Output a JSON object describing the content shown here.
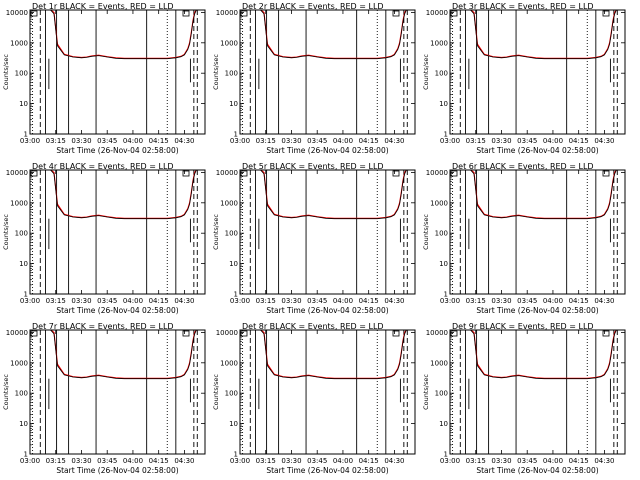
{
  "chart_data": [
    {
      "type": "line",
      "title": "Det 1r BLACK = Events, RED = LLD",
      "ylabel": "Counts/sec",
      "xlabel": "Start Time (26-Nov-04 02:58:00)",
      "series": [
        {
          "name": "Events",
          "color": "#000000"
        },
        {
          "name": "LLD",
          "color": "#ff0000"
        }
      ]
    },
    {
      "type": "line",
      "title": "Det 2r BLACK = Events, RED = LLD",
      "ylabel": "Counts/sec",
      "xlabel": "Start Time (26-Nov-04 02:58:00)",
      "series": [
        {
          "name": "Events",
          "color": "#000000"
        },
        {
          "name": "LLD",
          "color": "#ff0000"
        }
      ]
    },
    {
      "type": "line",
      "title": "Det 3r BLACK = Events, RED = LLD",
      "ylabel": "Counts/sec",
      "xlabel": "Start Time (26-Nov-04 02:58:00)",
      "series": [
        {
          "name": "Events",
          "color": "#000000"
        },
        {
          "name": "LLD",
          "color": "#ff0000"
        }
      ]
    },
    {
      "type": "line",
      "title": "Det 4r BLACK = Events, RED = LLD",
      "ylabel": "Counts/sec",
      "xlabel": "Start Time (26-Nov-04 02:58:00)",
      "series": [
        {
          "name": "Events",
          "color": "#000000"
        },
        {
          "name": "LLD",
          "color": "#ff0000"
        }
      ]
    },
    {
      "type": "line",
      "title": "Det 5r BLACK = Events, RED = LLD",
      "ylabel": "Counts/sec",
      "xlabel": "Start Time (26-Nov-04 02:58:00)",
      "series": [
        {
          "name": "Events",
          "color": "#000000"
        },
        {
          "name": "LLD",
          "color": "#ff0000"
        }
      ]
    },
    {
      "type": "line",
      "title": "Det 6r BLACK = Events, RED = LLD",
      "ylabel": "Counts/sec",
      "xlabel": "Start Time (26-Nov-04 02:58:00)",
      "series": [
        {
          "name": "Events",
          "color": "#000000"
        },
        {
          "name": "LLD",
          "color": "#ff0000"
        }
      ]
    },
    {
      "type": "line",
      "title": "Det 7r BLACK = Events, RED = LLD",
      "ylabel": "Counts/sec",
      "xlabel": "Start Time (26-Nov-04 02:58:00)",
      "series": [
        {
          "name": "Events",
          "color": "#000000"
        },
        {
          "name": "LLD",
          "color": "#ff0000"
        }
      ]
    },
    {
      "type": "line",
      "title": "Det 8r BLACK = Events, RED = LLD",
      "ylabel": "Counts/sec",
      "xlabel": "Start Time (26-Nov-04 02:58:00)",
      "series": [
        {
          "name": "Events",
          "color": "#000000"
        },
        {
          "name": "LLD",
          "color": "#ff0000"
        }
      ]
    },
    {
      "type": "line",
      "title": "Det 9r BLACK = Events, RED = LLD",
      "ylabel": "Counts/sec",
      "xlabel": "Start Time (26-Nov-04 02:58:00)",
      "series": [
        {
          "name": "Events",
          "color": "#000000"
        },
        {
          "name": "LLD",
          "color": "#ff0000"
        }
      ]
    }
  ],
  "shared": {
    "x_ticks": [
      "03:00",
      "03:15",
      "03:30",
      "03:45",
      "04:00",
      "04:15",
      "04:30"
    ],
    "x_range_minutes_after_0300": [
      0,
      102
    ],
    "y_scale": "log",
    "y_range": [
      1,
      12000
    ],
    "y_ticks": [
      {
        "value": 1,
        "label": "1"
      },
      {
        "value": 10,
        "label": "10"
      },
      {
        "value": 100,
        "label": "100"
      },
      {
        "value": 1000,
        "label": "1000"
      },
      {
        "value": 10000,
        "label": "10000"
      }
    ],
    "curve_minutes": [
      0,
      10,
      12,
      14,
      16,
      20,
      25,
      30,
      33,
      36,
      40,
      45,
      50,
      55,
      60,
      65,
      70,
      75,
      80,
      85,
      88,
      90,
      92,
      93,
      94,
      95,
      96,
      97,
      98,
      99,
      100,
      101,
      102
    ],
    "events_rate": [
      12000,
      12000,
      12000,
      9000,
      800,
      400,
      340,
      320,
      330,
      360,
      380,
      340,
      310,
      300,
      300,
      300,
      300,
      300,
      300,
      320,
      350,
      400,
      600,
      900,
      2000,
      5000,
      9000,
      12000,
      12000,
      12000,
      12000,
      12000,
      12000
    ],
    "lld_rate": [
      12000,
      12000,
      12000,
      10000,
      900,
      420,
      350,
      330,
      340,
      370,
      390,
      350,
      320,
      310,
      310,
      310,
      310,
      310,
      310,
      330,
      360,
      420,
      650,
      1000,
      2200,
      5500,
      10000,
      12000,
      12000,
      12000,
      12000,
      12000,
      12000
    ],
    "solid_vlines_min": [
      9,
      15.5,
      22.5,
      38.5,
      68,
      85
    ],
    "dotted_vlines_min": [
      1.5,
      80
    ],
    "dashed_vlines_min": [
      6,
      95.5,
      97.5
    ],
    "spike_min": [
      11,
      93.5
    ],
    "spike_rate": [
      30,
      50
    ]
  }
}
